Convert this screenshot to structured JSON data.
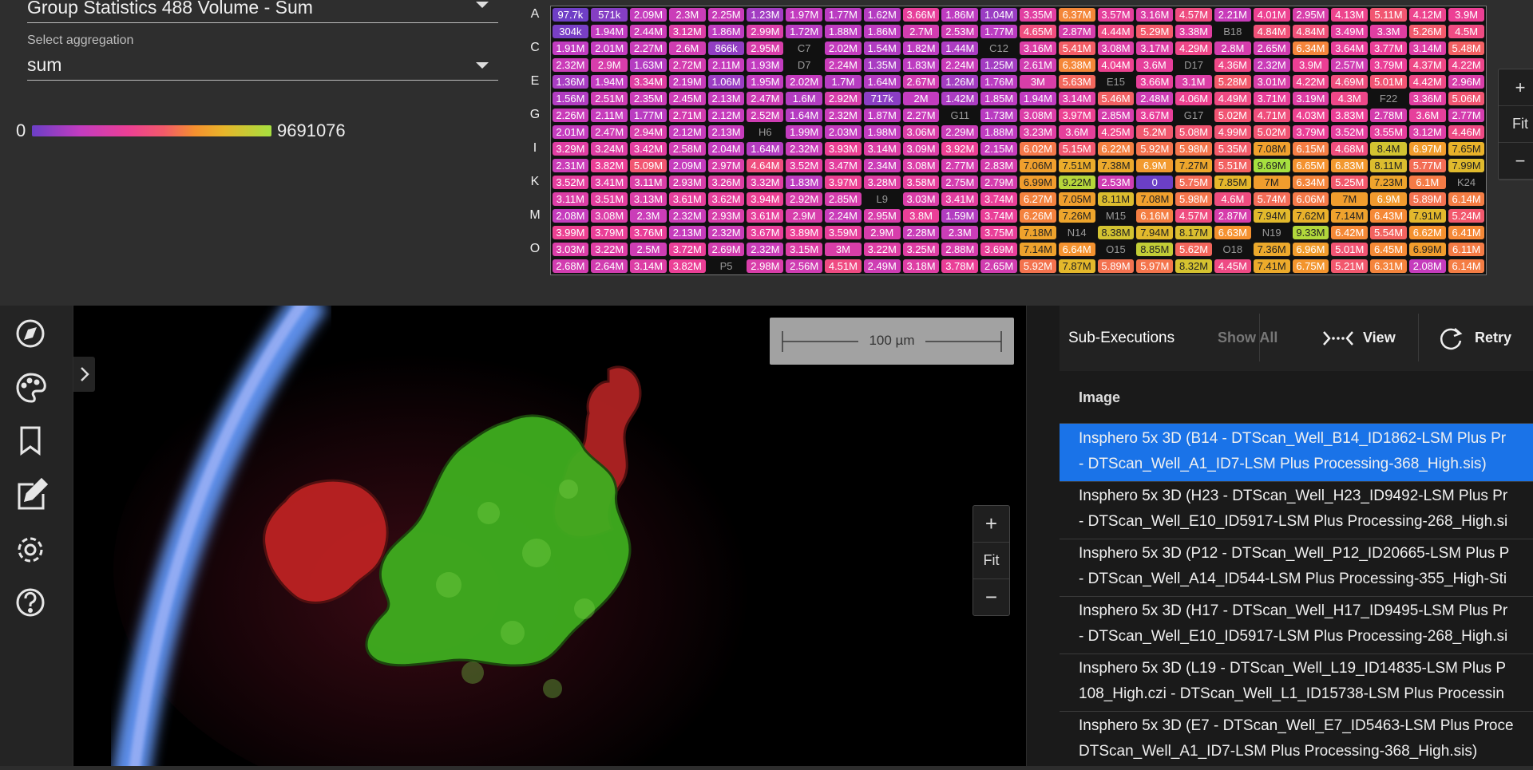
{
  "controls": {
    "metric_select": "Group Statistics 488 Volume - Sum",
    "aggregation_label": "Select aggregation",
    "aggregation_select": "sum"
  },
  "color_scale": {
    "min": 0,
    "max": 9691076
  },
  "plate": {
    "row_labels": [
      "A",
      "C",
      "E",
      "G",
      "I",
      "K",
      "M",
      "O"
    ],
    "rows": [
      [
        "97.7k",
        "571k",
        "2.09M",
        "2.3M",
        "2.25M",
        "1.23M",
        "1.97M",
        "1.77M",
        "1.62M",
        "3.66M",
        "1.86M",
        "1.04M",
        "3.35M",
        "6.37M",
        "3.57M",
        "3.16M",
        "4.57M",
        "2.21M",
        "4.01M",
        "2.95M",
        "4.13M",
        "5.11M",
        "4.12M",
        "3.9M"
      ],
      [
        "304k",
        "1.94M",
        "2.44M",
        "3.12M",
        "1.86M",
        "2.99M",
        "1.72M",
        "1.88M",
        "1.86M",
        "2.7M",
        "2.53M",
        "1.77M",
        "4.65M",
        "2.87M",
        "4.44M",
        "5.29M",
        "3.38M",
        "B18",
        "4.84M",
        "4.84M",
        "3.49M",
        "3.3M",
        "5.26M",
        "4.5M"
      ],
      [
        "1.91M",
        "2.01M",
        "2.27M",
        "2.6M",
        "866k",
        "2.95M",
        "C7",
        "2.02M",
        "1.54M",
        "1.82M",
        "1.44M",
        "C12",
        "3.16M",
        "5.41M",
        "3.08M",
        "3.17M",
        "4.29M",
        "2.8M",
        "2.65M",
        "6.34M",
        "3.64M",
        "3.77M",
        "3.14M",
        "5.48M"
      ],
      [
        "2.32M",
        "2.9M",
        "1.63M",
        "2.72M",
        "2.11M",
        "1.93M",
        "D7",
        "2.24M",
        "1.35M",
        "1.83M",
        "2.24M",
        "1.25M",
        "2.61M",
        "6.38M",
        "4.04M",
        "3.6M",
        "D17",
        "4.36M",
        "2.32M",
        "3.9M",
        "2.57M",
        "3.79M",
        "4.37M",
        "4.22M"
      ],
      [
        "1.36M",
        "1.94M",
        "3.34M",
        "2.19M",
        "1.06M",
        "1.95M",
        "2.02M",
        "1.7M",
        "1.64M",
        "2.67M",
        "1.26M",
        "1.76M",
        "3M",
        "5.63M",
        "E15",
        "3.66M",
        "3.1M",
        "5.28M",
        "3.01M",
        "4.22M",
        "4.69M",
        "5.01M",
        "4.42M",
        "2.96M"
      ],
      [
        "1.56M",
        "2.51M",
        "2.35M",
        "2.45M",
        "2.13M",
        "2.47M",
        "1.6M",
        "2.92M",
        "717k",
        "2M",
        "1.42M",
        "1.85M",
        "1.94M",
        "3.14M",
        "5.46M",
        "2.48M",
        "4.06M",
        "4.49M",
        "3.71M",
        "3.19M",
        "4.3M",
        "F22",
        "3.36M",
        "5.06M"
      ],
      [
        "2.26M",
        "2.11M",
        "1.77M",
        "2.71M",
        "2.12M",
        "2.52M",
        "1.64M",
        "2.32M",
        "1.87M",
        "2.27M",
        "G11",
        "1.73M",
        "3.08M",
        "3.97M",
        "2.85M",
        "3.67M",
        "G17",
        "5.02M",
        "4.71M",
        "4.03M",
        "3.83M",
        "2.78M",
        "3.6M",
        "2.77M"
      ],
      [
        "2.01M",
        "2.47M",
        "2.94M",
        "2.12M",
        "2.13M",
        "H6",
        "1.99M",
        "2.03M",
        "1.98M",
        "3.06M",
        "2.29M",
        "1.88M",
        "3.23M",
        "3.6M",
        "4.25M",
        "5.2M",
        "5.08M",
        "4.99M",
        "5.02M",
        "3.79M",
        "3.52M",
        "3.55M",
        "3.12M",
        "4.46M"
      ],
      [
        "3.29M",
        "3.24M",
        "3.42M",
        "2.58M",
        "2.04M",
        "1.64M",
        "2.32M",
        "3.93M",
        "3.14M",
        "3.09M",
        "3.92M",
        "2.15M",
        "6.02M",
        "5.15M",
        "6.22M",
        "5.92M",
        "5.98M",
        "5.35M",
        "7.08M",
        "6.15M",
        "4.68M",
        "8.4M",
        "6.97M",
        "7.65M"
      ],
      [
        "2.31M",
        "3.82M",
        "5.09M",
        "2.09M",
        "2.97M",
        "4.64M",
        "3.52M",
        "3.47M",
        "2.34M",
        "3.08M",
        "2.77M",
        "2.83M",
        "7.06M",
        "7.51M",
        "7.38M",
        "6.9M",
        "7.27M",
        "5.51M",
        "9.69M",
        "6.65M",
        "6.83M",
        "8.11M",
        "5.77M",
        "7.99M"
      ],
      [
        "3.52M",
        "3.41M",
        "3.11M",
        "2.93M",
        "3.26M",
        "3.32M",
        "1.83M",
        "3.97M",
        "3.28M",
        "3.58M",
        "2.75M",
        "2.79M",
        "6.99M",
        "9.22M",
        "2.53M",
        "0",
        "5.75M",
        "7.85M",
        "7M",
        "6.34M",
        "5.25M",
        "7.23M",
        "6.1M",
        "K24"
      ],
      [
        "3.11M",
        "3.51M",
        "3.13M",
        "3.61M",
        "3.62M",
        "3.94M",
        "2.92M",
        "2.85M",
        "L9",
        "3.03M",
        "3.41M",
        "3.74M",
        "6.27M",
        "7.05M",
        "8.11M",
        "7.08M",
        "5.98M",
        "4.6M",
        "5.74M",
        "6.06M",
        "7M",
        "6.9M",
        "5.89M",
        "6.14M"
      ],
      [
        "2.08M",
        "3.08M",
        "2.3M",
        "2.32M",
        "2.93M",
        "3.61M",
        "2.9M",
        "2.24M",
        "2.95M",
        "3.8M",
        "1.59M",
        "3.74M",
        "6.26M",
        "7.26M",
        "M15",
        "6.16M",
        "4.57M",
        "2.87M",
        "7.94M",
        "7.62M",
        "7.14M",
        "6.43M",
        "7.91M",
        "5.24M"
      ],
      [
        "3.99M",
        "3.79M",
        "3.76M",
        "2.13M",
        "2.32M",
        "3.67M",
        "3.89M",
        "3.59M",
        "2.9M",
        "2.28M",
        "2.3M",
        "3.75M",
        "7.18M",
        "N14",
        "8.38M",
        "7.94M",
        "8.17M",
        "6.63M",
        "N19",
        "9.33M",
        "6.42M",
        "5.54M",
        "6.62M",
        "6.41M"
      ],
      [
        "3.03M",
        "3.22M",
        "2.5M",
        "3.72M",
        "2.69M",
        "2.32M",
        "3.15M",
        "3M",
        "3.22M",
        "3.25M",
        "2.88M",
        "3.69M",
        "7.14M",
        "6.64M",
        "O15",
        "8.85M",
        "5.62M",
        "O18",
        "7.36M",
        "6.96M",
        "5.01M",
        "6.45M",
        "6.99M",
        "6.11M"
      ],
      [
        "2.68M",
        "2.64M",
        "3.14M",
        "3.82M",
        "P5",
        "2.98M",
        "2.56M",
        "4.51M",
        "2.49M",
        "3.18M",
        "3.78M",
        "2.65M",
        "5.92M",
        "7.87M",
        "5.89M",
        "5.97M",
        "8.32M",
        "4.45M",
        "7.41M",
        "6.75M",
        "5.21M",
        "6.31M",
        "2.08M",
        "6.14M"
      ]
    ],
    "zoom": {
      "in": "+",
      "fit": "Fit",
      "out": "−"
    }
  },
  "viewer": {
    "scale_bar": "100 µm",
    "zoom": {
      "in": "+",
      "fit": "Fit",
      "out": "−"
    }
  },
  "sub_executions": {
    "title": "Sub-Executions",
    "show_all": "Show All",
    "view": "View",
    "retry": "Retry",
    "column": "Image",
    "rows": [
      [
        "Insphero 5x 3D (B14 - DTScan_Well_B14_ID1862-LSM Plus Pr",
        "- DTScan_Well_A1_ID7-LSM Plus Processing-368_High.sis)"
      ],
      [
        "Insphero 5x 3D (H23 - DTScan_Well_H23_ID9492-LSM Plus Pr",
        "- DTScan_Well_E10_ID5917-LSM Plus Processing-268_High.si"
      ],
      [
        "Insphero 5x 3D (P12 - DTScan_Well_P12_ID20665-LSM Plus P",
        "- DTScan_Well_A14_ID544-LSM Plus Processing-355_High-Sti"
      ],
      [
        "Insphero 5x 3D (H17 - DTScan_Well_H17_ID9495-LSM Plus Pr",
        "- DTScan_Well_E10_ID5917-LSM Plus Processing-268_High.si"
      ],
      [
        "Insphero 5x 3D (L19 - DTScan_Well_L19_ID14835-LSM Plus P",
        "108_High.czi - DTScan_Well_L1_ID15738-LSM Plus Processin"
      ],
      [
        "Insphero 5x 3D (E7 - DTScan_Well_E7_ID5463-LSM Plus Proce",
        "DTScan_Well_A1_ID7-LSM Plus Processing-368_High.sis)"
      ]
    ]
  }
}
